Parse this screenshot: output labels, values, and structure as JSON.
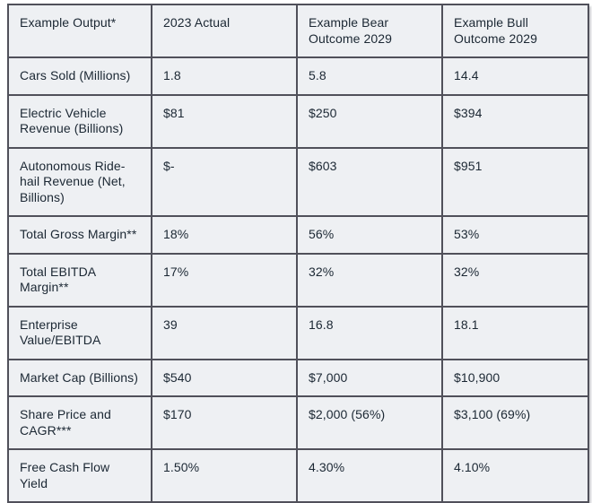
{
  "colors": {
    "page_background": "#ffffff",
    "cell_background": "#eef0f3",
    "border": "#50505a",
    "text": "#1b2733"
  },
  "chart_data": {
    "type": "table",
    "columns": [
      "Example Output*",
      "2023 Actual",
      "Example Bear Outcome 2029",
      "Example Bull Outcome 2029"
    ],
    "rows": [
      [
        "Cars Sold (Millions)",
        "1.8",
        "5.8",
        "14.4"
      ],
      [
        "Electric Vehicle Revenue (Billions)",
        "$81",
        "$250",
        "$394"
      ],
      [
        "Autonomous Ride-hail Revenue (Net, Billions)",
        "$-",
        "$603",
        "$951"
      ],
      [
        "Total Gross Margin**",
        "18%",
        "56%",
        "53%"
      ],
      [
        "Total EBITDA Margin**",
        "17%",
        "32%",
        "32%"
      ],
      [
        "Enterprise Value/EBITDA",
        "39",
        "16.8",
        "18.1"
      ],
      [
        "Market Cap (Billions)",
        "$540",
        "$7,000",
        "$10,900"
      ],
      [
        "Share Price and CAGR***",
        "$170",
        "$2,000 (56%)",
        "$3,100 (69%)"
      ],
      [
        "Free Cash Flow Yield",
        "1.50%",
        "4.30%",
        "4.10%"
      ]
    ]
  }
}
